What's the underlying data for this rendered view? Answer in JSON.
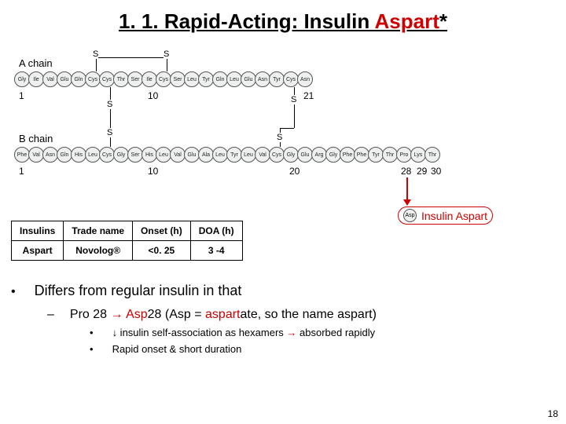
{
  "title": {
    "prefix": "1. 1.  Rapid-Acting:  Insulin ",
    "highlight": "Aspart",
    "suffix": "*"
  },
  "diagram": {
    "a_chain_label": "A chain",
    "b_chain_label": "B chain",
    "a_chain": [
      "Gly",
      "Ile",
      "Val",
      "Glu",
      "Gln",
      "Cys",
      "Cys",
      "Thr",
      "Ser",
      "Ile",
      "Cys",
      "Ser",
      "Leu",
      "Tyr",
      "Gln",
      "Leu",
      "Glu",
      "Asn",
      "Tyr",
      "Cys",
      "Asn"
    ],
    "b_chain": [
      "Phe",
      "Val",
      "Asn",
      "Gln",
      "His",
      "Leu",
      "Cys",
      "Gly",
      "Ser",
      "His",
      "Leu",
      "Val",
      "Glu",
      "Ala",
      "Leu",
      "Tyr",
      "Leu",
      "Val",
      "Cys",
      "Gly",
      "Glu",
      "Arg",
      "Gly",
      "Phe",
      "Phe",
      "Tyr",
      "Thr",
      "Pro",
      "Lys",
      "Thr"
    ],
    "a_nums": {
      "1": "1",
      "10": "10",
      "21": "21"
    },
    "b_nums": {
      "1": "1",
      "10": "10",
      "20": "20",
      "28": "28",
      "29": "29",
      "30": "30"
    },
    "s_label": "S",
    "callout_bead": "Asp",
    "callout_text": "Insulin Aspart",
    "arrow_color": "#cc0000",
    "bead_bg": "#eef0f0",
    "bead_border": "#555555"
  },
  "table": {
    "headers": [
      "Insulins",
      "Trade name",
      "Onset  (h)",
      "DOA (h)"
    ],
    "row": [
      "Aspart",
      "Novolog®",
      "<0. 25",
      "3 -4"
    ]
  },
  "bullets": {
    "lvl1": "Differs from regular insulin in that",
    "lvl2_pre": "Pro 28 ",
    "lvl2_arrow": "→",
    "lvl2_mid": " Asp",
    "lvl2_post1": "28 (Asp = ",
    "lvl2_post2": "aspart",
    "lvl2_post3": "ate, so the name aspart)",
    "lvl3a_pre": "↓ insulin self-association as hexamers ",
    "lvl3a_arrow": "→",
    "lvl3a_post": " absorbed rapidly",
    "lvl3b": "Rapid onset & short duration"
  },
  "page_number": "18",
  "colors": {
    "red": "#cc0000",
    "black": "#000000",
    "background": "#ffffff"
  }
}
